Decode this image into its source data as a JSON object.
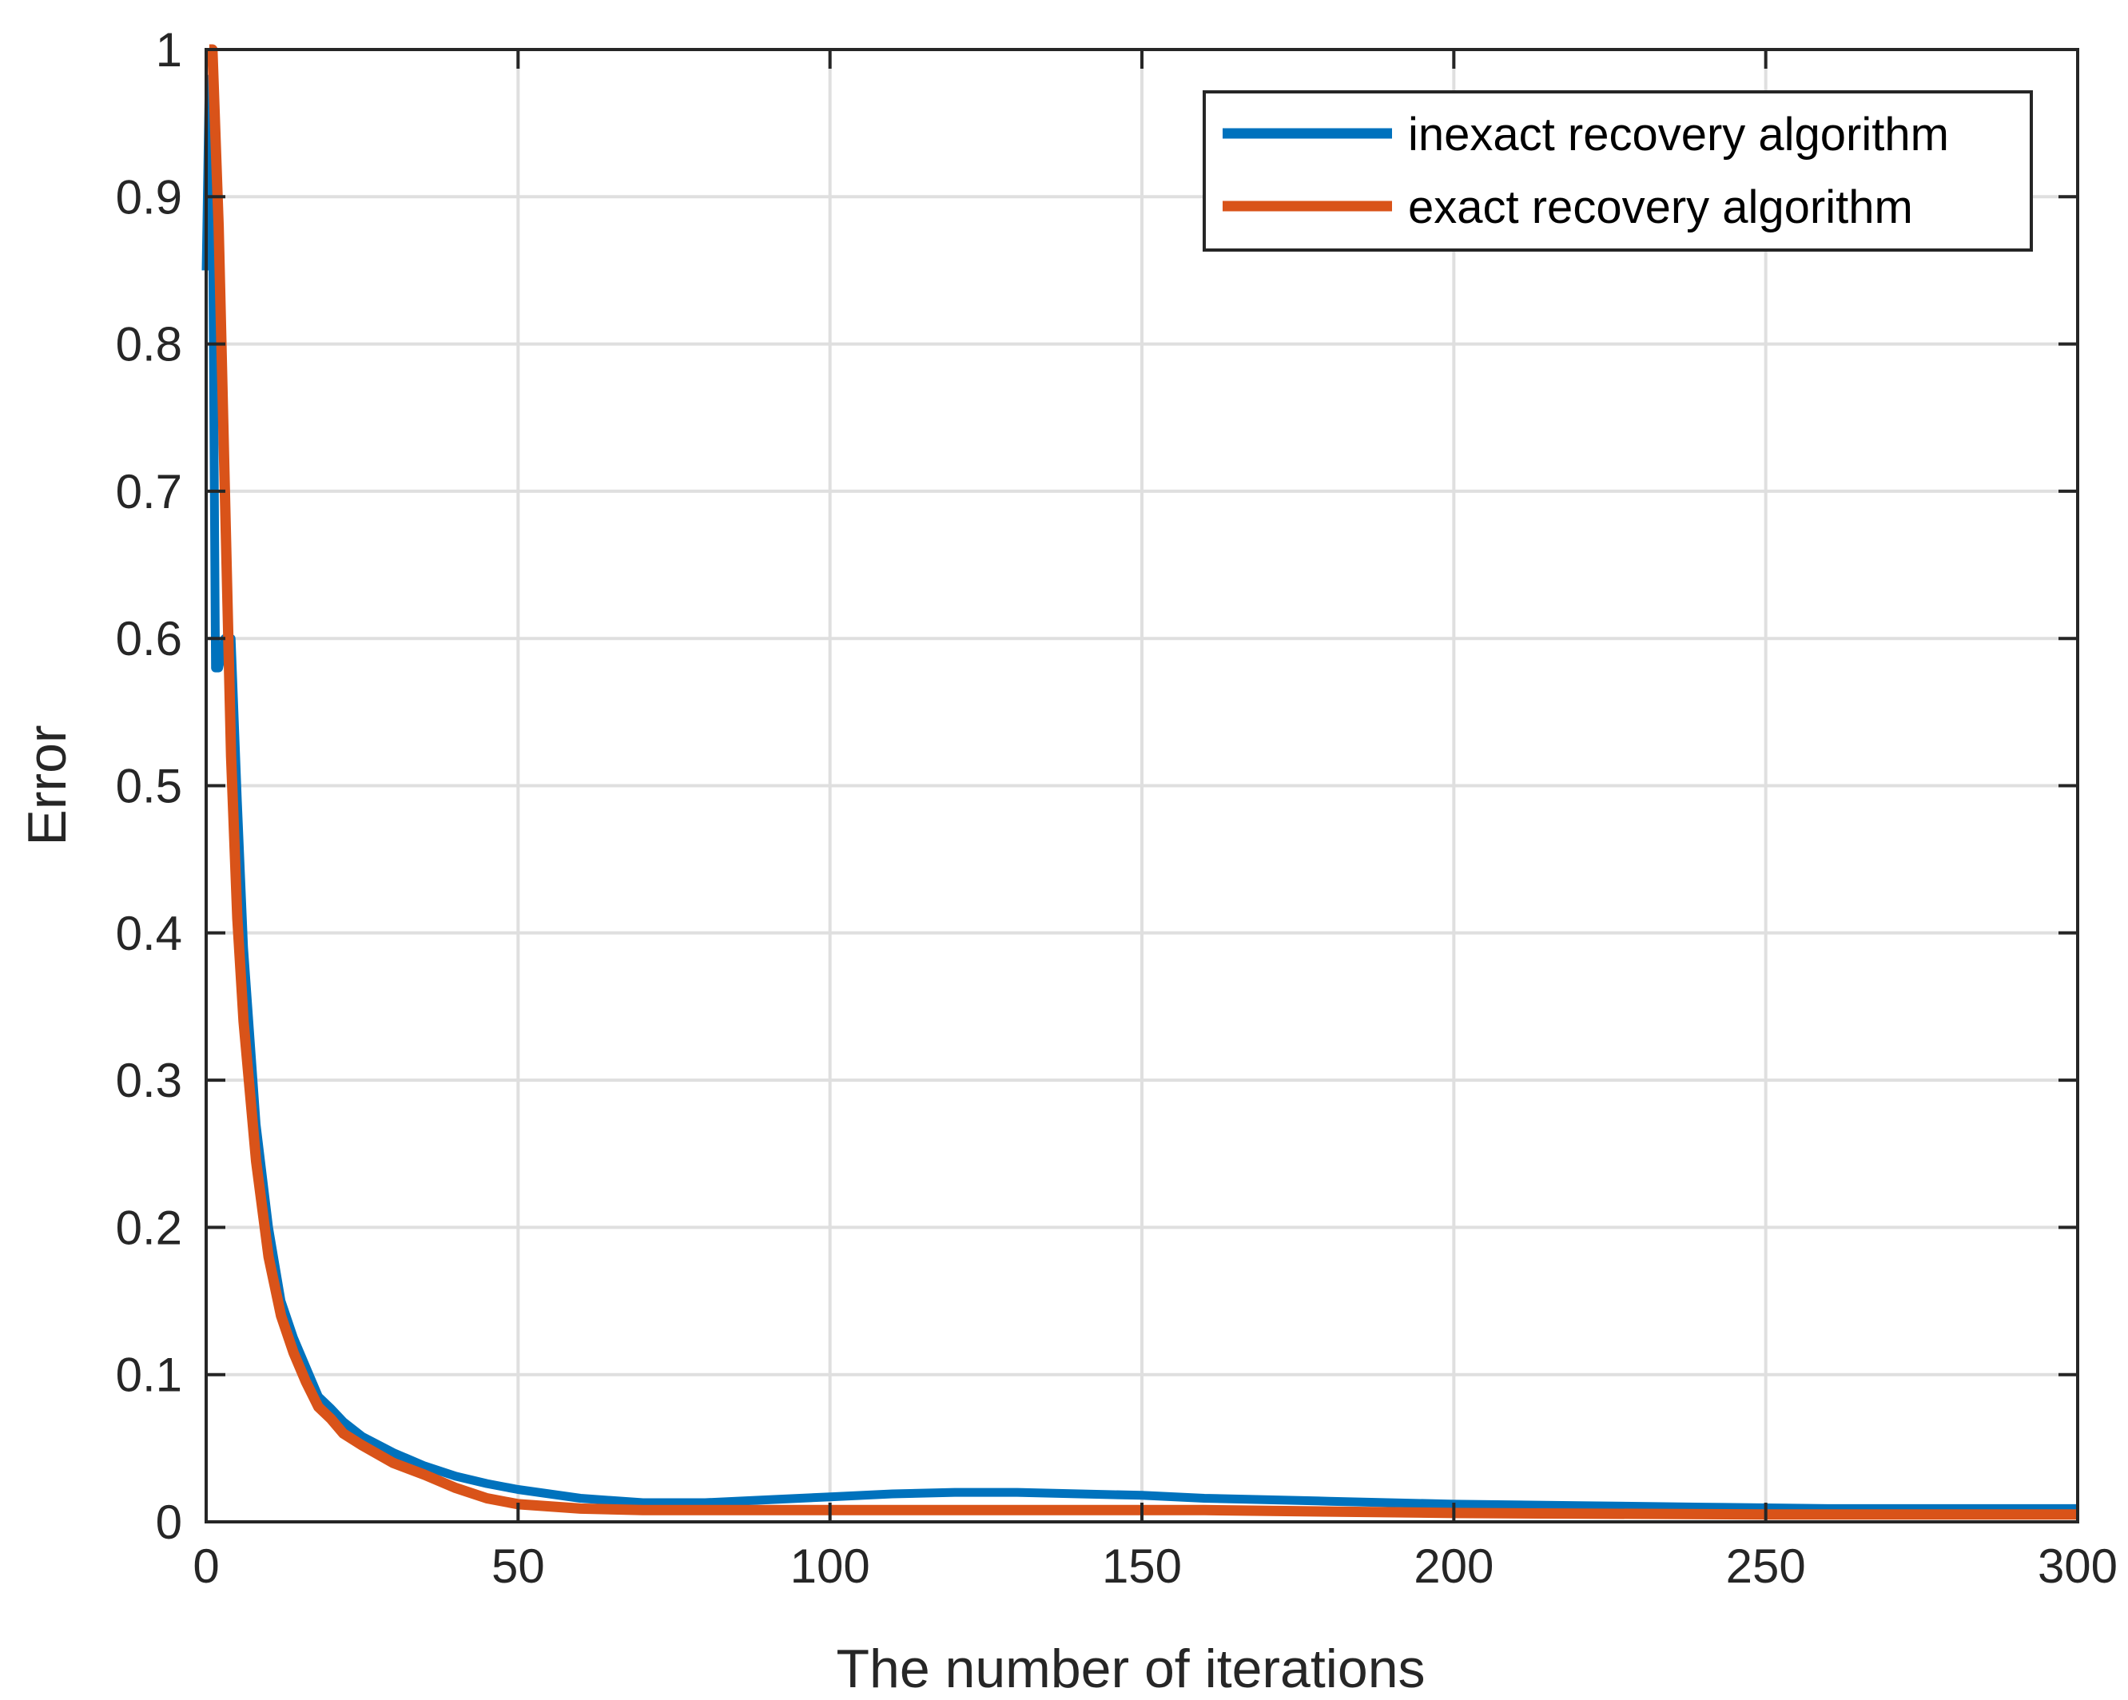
{
  "chart_data": {
    "type": "line",
    "title": "",
    "xlabel": "The number of iterations",
    "ylabel": "Error",
    "xlim": [
      0,
      300
    ],
    "ylim": [
      0,
      1
    ],
    "xticks": [
      0,
      50,
      100,
      150,
      200,
      250,
      300
    ],
    "xtick_labels": [
      "0",
      "50",
      "100",
      "150",
      "200",
      "250",
      "300"
    ],
    "yticks": [
      0,
      0.1,
      0.2,
      0.3,
      0.4,
      0.5,
      0.6,
      0.7,
      0.8,
      0.9,
      1
    ],
    "ytick_labels": [
      "0",
      "0.1",
      "0.2",
      "0.3",
      "0.4",
      "0.5",
      "0.6",
      "0.7",
      "0.8",
      "0.9",
      "1"
    ],
    "grid": true,
    "legend_position": "top-right",
    "series": [
      {
        "name": "inexact recovery algorithm",
        "color": "#0072BD",
        "x": [
          0,
          0.5,
          1,
          1.5,
          2,
          3,
          4,
          5,
          6,
          8,
          10,
          12,
          14,
          16,
          18,
          20,
          22,
          25,
          30,
          35,
          40,
          45,
          50,
          55,
          60,
          70,
          80,
          90,
          100,
          110,
          120,
          130,
          140,
          150,
          160,
          180,
          200,
          220,
          240,
          260,
          280,
          300
        ],
        "values": [
          0.85,
          0.98,
          0.9,
          0.58,
          0.58,
          0.6,
          0.6,
          0.49,
          0.39,
          0.27,
          0.2,
          0.15,
          0.125,
          0.105,
          0.085,
          0.077,
          0.068,
          0.058,
          0.047,
          0.038,
          0.031,
          0.026,
          0.022,
          0.019,
          0.016,
          0.013,
          0.013,
          0.015,
          0.017,
          0.019,
          0.02,
          0.02,
          0.019,
          0.018,
          0.016,
          0.014,
          0.012,
          0.011,
          0.01,
          0.009,
          0.009,
          0.009
        ]
      },
      {
        "name": "exact recovery algorithm",
        "color": "#D95319",
        "x": [
          0.5,
          1,
          2,
          3,
          4,
          5,
          6,
          8,
          10,
          12,
          14,
          16,
          18,
          20,
          22,
          25,
          30,
          35,
          40,
          45,
          50,
          60,
          70,
          80,
          100,
          120,
          140,
          160,
          180,
          200,
          250,
          300
        ],
        "values": [
          1.0,
          1.0,
          0.88,
          0.7,
          0.52,
          0.41,
          0.34,
          0.245,
          0.18,
          0.14,
          0.115,
          0.095,
          0.078,
          0.07,
          0.06,
          0.052,
          0.04,
          0.032,
          0.023,
          0.016,
          0.012,
          0.009,
          0.008,
          0.008,
          0.008,
          0.008,
          0.008,
          0.008,
          0.007,
          0.006,
          0.005,
          0.005
        ]
      }
    ]
  }
}
